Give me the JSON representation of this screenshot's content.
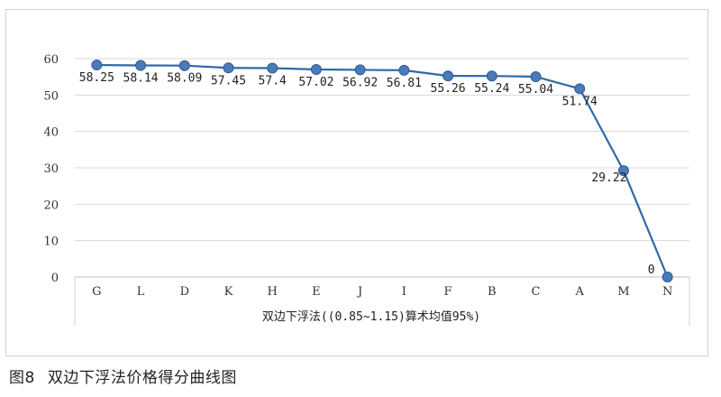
{
  "chart_data": {
    "type": "line",
    "categories": [
      "G",
      "L",
      "D",
      "K",
      "H",
      "E",
      "J",
      "I",
      "F",
      "B",
      "C",
      "A",
      "M",
      "N"
    ],
    "values": [
      58.25,
      58.14,
      58.09,
      57.45,
      57.4,
      57.02,
      56.92,
      56.81,
      55.26,
      55.24,
      55.04,
      51.74,
      29.22,
      0
    ],
    "data_labels": [
      "58.25",
      "58.14",
      "58.09",
      "57.45",
      "57.4",
      "57.02",
      "56.92",
      "56.81",
      "55.26",
      "55.24",
      "55.04",
      "51.74",
      "29.22",
      "0"
    ],
    "title": "",
    "xlabel": "双边下浮法((0.85~1.15)算术均值95%)",
    "ylabel": "",
    "ylim": [
      0,
      60
    ],
    "yticks": [
      0,
      10,
      20,
      30,
      40,
      50,
      60
    ],
    "grid": true,
    "legend": "none",
    "line_color": "#2e6aa8",
    "marker_color": "#4a7ab8",
    "grid_color": "#d9d9d9"
  },
  "caption": {
    "figure_number": "图8",
    "text": "双边下浮法价格得分曲线图"
  }
}
